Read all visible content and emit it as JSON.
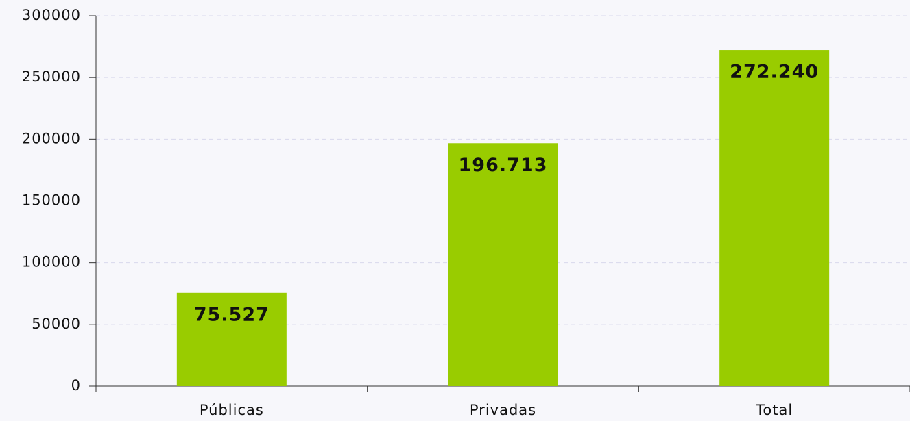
{
  "chart_data": {
    "type": "bar",
    "categories": [
      "Públicas",
      "Privadas",
      "Total"
    ],
    "values": [
      75527,
      196713,
      272240
    ],
    "value_labels": [
      "75.527",
      "196.713",
      "272.240"
    ],
    "color": "#99cc00",
    "ylim": [
      0,
      300000
    ],
    "yticks": [
      0,
      50000,
      100000,
      150000,
      200000,
      250000,
      300000
    ],
    "grid": true
  }
}
